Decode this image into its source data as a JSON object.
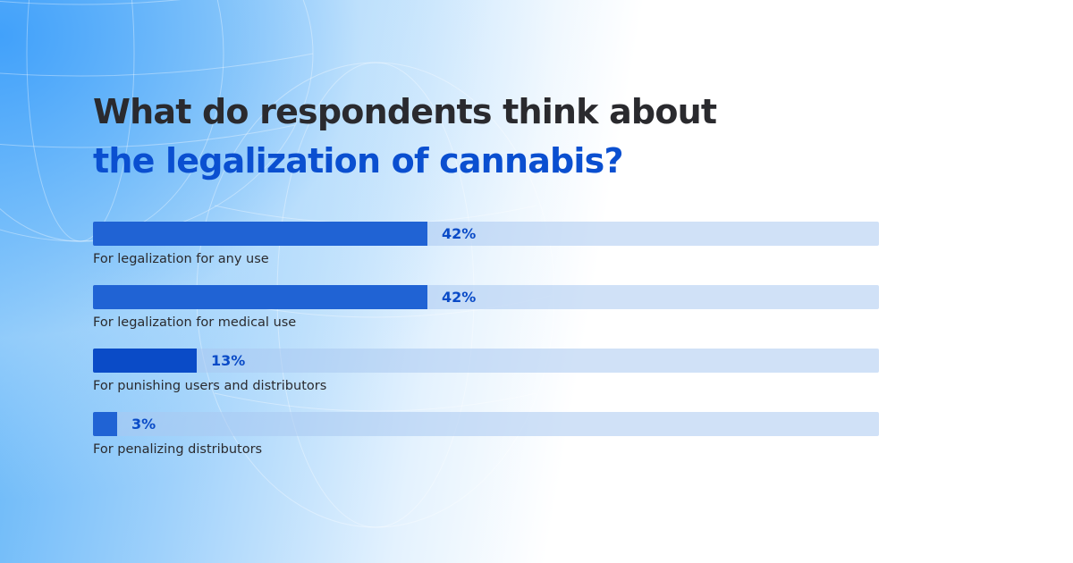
{
  "header": {
    "title_line1": "What do respondents think about",
    "title_line2": "the legalization of cannabis?"
  },
  "colors": {
    "title_dark": "#2a2a2e",
    "title_accent": "#0a4fd0",
    "bar_fill": "#2063d4",
    "bar_fill_emphasis": "#0a4bc7",
    "bar_track": "#c9dbf3",
    "value_text": "#0a4bc7"
  },
  "chart_data": {
    "type": "bar",
    "orientation": "horizontal",
    "title": "What do respondents think about the legalization of cannabis?",
    "categories": [
      "For legalization for any use",
      "For legalization for medical use",
      "For punishing users and distributors",
      "For penalizing distributors"
    ],
    "values": [
      42,
      42,
      13,
      3
    ],
    "value_labels": [
      "42%",
      "42%",
      "13%",
      "3%"
    ],
    "xlim": [
      0,
      100
    ],
    "unit": "%",
    "grid": false,
    "legend": "none"
  }
}
